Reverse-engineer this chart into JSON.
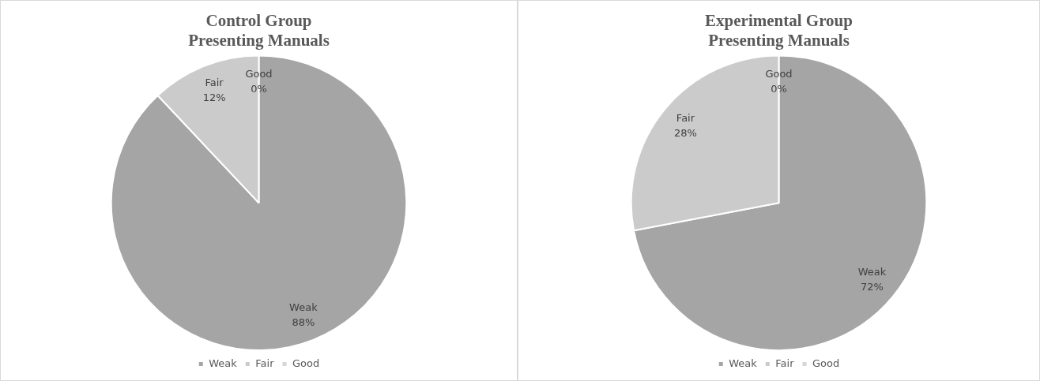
{
  "chart_data": [
    {
      "type": "pie",
      "title": "Control Group\nPresenting Manuals",
      "categories": [
        "Weak",
        "Fair",
        "Good"
      ],
      "values": [
        88,
        12,
        0
      ],
      "value_labels": [
        "88%",
        "12%",
        "0%"
      ],
      "colors": [
        "#a5a5a5",
        "#cbcbcb",
        "#d6d6d6"
      ],
      "legend": "bottom"
    },
    {
      "type": "pie",
      "title": "Experimental Group\nPresenting Manuals",
      "categories": [
        "Weak",
        "Fair",
        "Good"
      ],
      "values": [
        72,
        28,
        0
      ],
      "value_labels": [
        "72%",
        "28%",
        "0%"
      ],
      "colors": [
        "#a5a5a5",
        "#cbcbcb",
        "#d6d6d6"
      ],
      "legend": "bottom"
    }
  ]
}
